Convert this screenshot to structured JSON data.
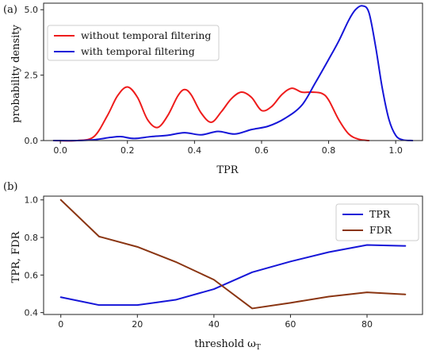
{
  "chart_data": [
    {
      "type": "line",
      "panel_label": "(a)",
      "title": "",
      "xlabel": "TPR",
      "ylabel": "probability density",
      "xlim": [
        -0.05,
        1.08
      ],
      "ylim": [
        0,
        5.25
      ],
      "xticks": [
        "0.0",
        "0.2",
        "0.4",
        "0.6",
        "0.8",
        "1.0"
      ],
      "xtick_values": [
        0.0,
        0.2,
        0.4,
        0.6,
        0.8,
        1.0
      ],
      "yticks": [
        "0.0",
        "2.5",
        "5.0"
      ],
      "ytick_values": [
        0.0,
        2.5,
        5.0
      ],
      "grid": false,
      "legend_position": "top-left",
      "series": [
        {
          "name": "without temporal filtering",
          "color": "#ee1c1c",
          "x": [
            -0.02,
            0.05,
            0.1,
            0.14,
            0.17,
            0.2,
            0.23,
            0.26,
            0.29,
            0.32,
            0.35,
            0.37,
            0.39,
            0.42,
            0.45,
            0.48,
            0.51,
            0.54,
            0.57,
            0.6,
            0.63,
            0.66,
            0.69,
            0.72,
            0.75,
            0.78,
            0.8,
            0.83,
            0.86,
            0.89,
            0.92
          ],
          "y": [
            0.0,
            0.0,
            0.15,
            0.95,
            1.7,
            2.05,
            1.65,
            0.8,
            0.5,
            0.95,
            1.7,
            1.95,
            1.75,
            1.05,
            0.7,
            1.1,
            1.6,
            1.85,
            1.65,
            1.15,
            1.3,
            1.75,
            2.0,
            1.85,
            1.85,
            1.8,
            1.55,
            0.8,
            0.25,
            0.05,
            0.0
          ]
        },
        {
          "name": "with temporal filtering",
          "color": "#1515d8",
          "x": [
            -0.02,
            0.05,
            0.1,
            0.15,
            0.18,
            0.22,
            0.27,
            0.32,
            0.37,
            0.42,
            0.47,
            0.52,
            0.57,
            0.62,
            0.67,
            0.72,
            0.76,
            0.8,
            0.83,
            0.86,
            0.88,
            0.9,
            0.92,
            0.94,
            0.96,
            0.98,
            1.0,
            1.02,
            1.05
          ],
          "y": [
            0.0,
            0.0,
            0.03,
            0.12,
            0.15,
            0.08,
            0.15,
            0.2,
            0.3,
            0.22,
            0.35,
            0.25,
            0.42,
            0.55,
            0.85,
            1.35,
            2.2,
            3.1,
            3.8,
            4.6,
            5.0,
            5.15,
            4.9,
            3.6,
            2.0,
            0.8,
            0.2,
            0.03,
            0.0
          ]
        }
      ]
    },
    {
      "type": "line",
      "panel_label": "(b)",
      "title": "",
      "xlabel": "threshold ω",
      "xlabel_subscript": "T",
      "ylabel": "TPR, FDR",
      "xlim": [
        -4.5,
        94.5
      ],
      "ylim": [
        0.39,
        1.02
      ],
      "xticks": [
        "0",
        "20",
        "40",
        "60",
        "80"
      ],
      "xtick_values": [
        0,
        20,
        40,
        60,
        80
      ],
      "yticks": [
        "0.4",
        "0.6",
        "0.8",
        "1.0"
      ],
      "ytick_values": [
        0.4,
        0.6,
        0.8,
        1.0
      ],
      "grid": false,
      "legend_position": "top-right",
      "series": [
        {
          "name": "TPR",
          "color": "#1515d8",
          "x": [
            0,
            10,
            20,
            30,
            40,
            50,
            60,
            70,
            80,
            90
          ],
          "y": [
            0.482,
            0.44,
            0.44,
            0.468,
            0.525,
            0.615,
            0.672,
            0.722,
            0.76,
            0.755
          ]
        },
        {
          "name": "FDR",
          "color": "#8a3512",
          "x": [
            0,
            10,
            20,
            30,
            40,
            50,
            60,
            70,
            80,
            90
          ],
          "y": [
            1.0,
            0.805,
            0.75,
            0.67,
            0.575,
            0.422,
            0.452,
            0.485,
            0.508,
            0.497
          ]
        }
      ]
    }
  ]
}
